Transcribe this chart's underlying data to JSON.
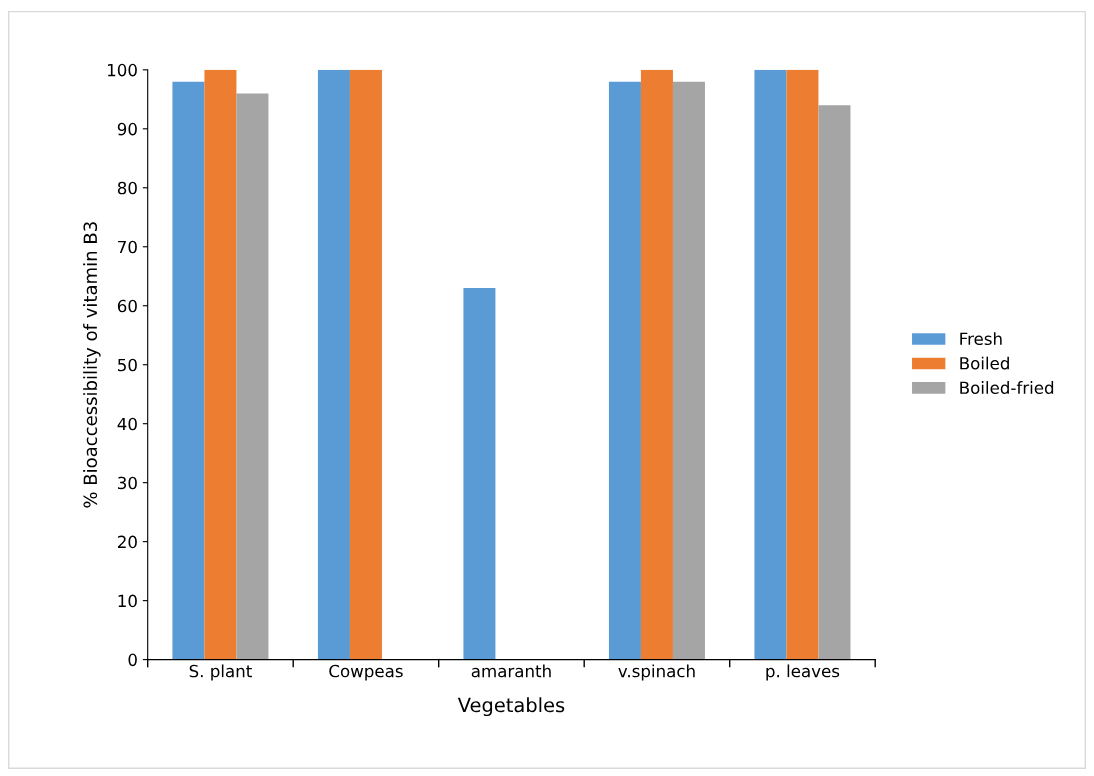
{
  "chart_data": {
    "type": "bar",
    "xlabel": "Vegetables",
    "ylabel": "% Bioaccessibility of vitamin B3",
    "categories": [
      "S. plant",
      "Cowpeas",
      "amaranth",
      "v.spinach",
      "p. leaves"
    ],
    "series": [
      {
        "name": "Fresh",
        "color": "#5b9bd5",
        "values": [
          98,
          100,
          63,
          98,
          100
        ]
      },
      {
        "name": "Boiled",
        "color": "#ed7d31",
        "values": [
          100,
          100,
          0,
          100,
          100
        ]
      },
      {
        "name": "Boiled-fried",
        "color": "#a5a5a5",
        "values": [
          96,
          0,
          0,
          98,
          94
        ]
      }
    ],
    "ylim": [
      0,
      100
    ],
    "yticks": [
      0,
      10,
      20,
      30,
      40,
      50,
      60,
      70,
      80,
      90,
      100
    ],
    "grid": false,
    "legend": "right"
  }
}
